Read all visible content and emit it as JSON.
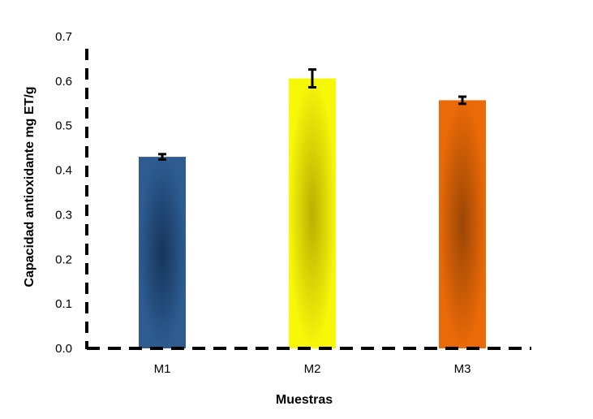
{
  "chart_data": {
    "type": "bar",
    "title": "",
    "xlabel": "Muestras",
    "ylabel": "Capacidad  antioxidante mg ET/g",
    "categories": [
      "M1",
      "M2",
      "M3"
    ],
    "values": [
      0.43,
      0.606,
      0.557
    ],
    "errors": [
      0.006,
      0.02,
      0.008
    ],
    "ylim": [
      0.0,
      0.7
    ],
    "yticks": [
      "0.0",
      "0.1",
      "0.2",
      "0.3",
      "0.4",
      "0.5",
      "0.6",
      "0.7"
    ],
    "grid": false,
    "legend": "none",
    "colors": [
      {
        "outer": "#2e5c91",
        "inner": "#15355c"
      },
      {
        "outer": "#f7f70a",
        "inner": "#b8b000"
      },
      {
        "outer": "#ea6a07",
        "inner": "#9a4605"
      }
    ]
  }
}
